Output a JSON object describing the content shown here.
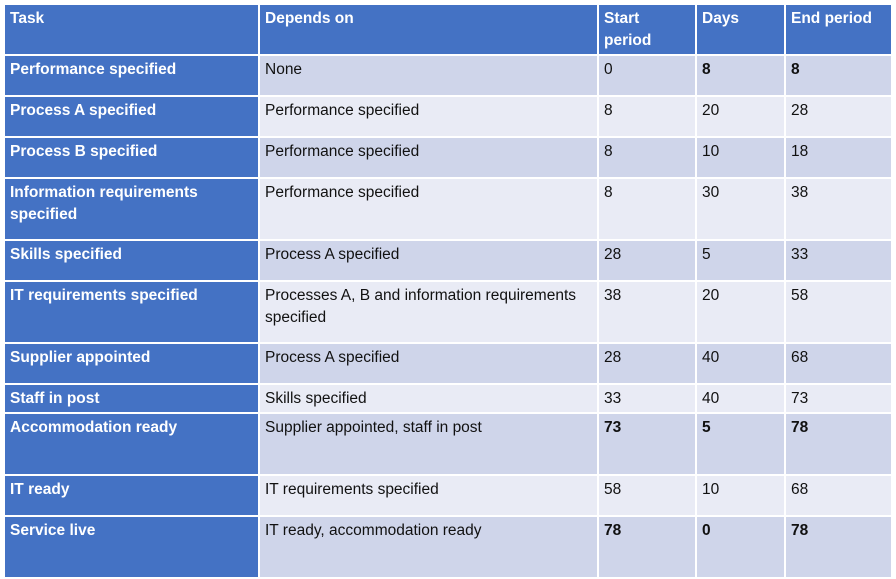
{
  "table": {
    "headers": [
      "Task",
      "Depends on",
      "Start period",
      "Days",
      "End period"
    ],
    "rows": [
      {
        "task": "Performance specified",
        "depends_on": "None",
        "start": "0",
        "days": "8",
        "end": "8"
      },
      {
        "task": "Process A specified",
        "depends_on": "Performance specified",
        "start": "8",
        "days": "20",
        "end": "28"
      },
      {
        "task": "Process B specified",
        "depends_on": "Performance specified",
        "start": "8",
        "days": "10",
        "end": "18"
      },
      {
        "task": "Information requirements specified",
        "depends_on": "Performance specified",
        "start": "8",
        "days": "30",
        "end": "38"
      },
      {
        "task": "Skills specified",
        "depends_on": "Process A specified",
        "start": "28",
        "days": "5",
        "end": "33"
      },
      {
        "task": "IT requirements specified",
        "depends_on": "Processes A, B and information requirements specified",
        "start": "38",
        "days": "20",
        "end": "58"
      },
      {
        "task": "Supplier appointed",
        "depends_on": "Process A specified",
        "start": "28",
        "days": "40",
        "end": "68"
      },
      {
        "task": "Staff in post",
        "depends_on": "Skills specified",
        "start": "33",
        "days": "40",
        "end": "73"
      },
      {
        "task": "Accommodation ready",
        "depends_on": "Supplier appointed, staff in post",
        "start": "73",
        "days": "5",
        "end": "78"
      },
      {
        "task": "IT ready",
        "depends_on": "IT requirements specified",
        "start": "58",
        "days": "10",
        "end": "68"
      },
      {
        "task": "Service live",
        "depends_on": "IT ready, accommodation ready",
        "start": "78",
        "days": "0",
        "end": "78"
      }
    ]
  },
  "colors": {
    "header_blue": "#4472c4",
    "row_dark": "#cfd5ea",
    "row_light": "#e9ebf5"
  }
}
